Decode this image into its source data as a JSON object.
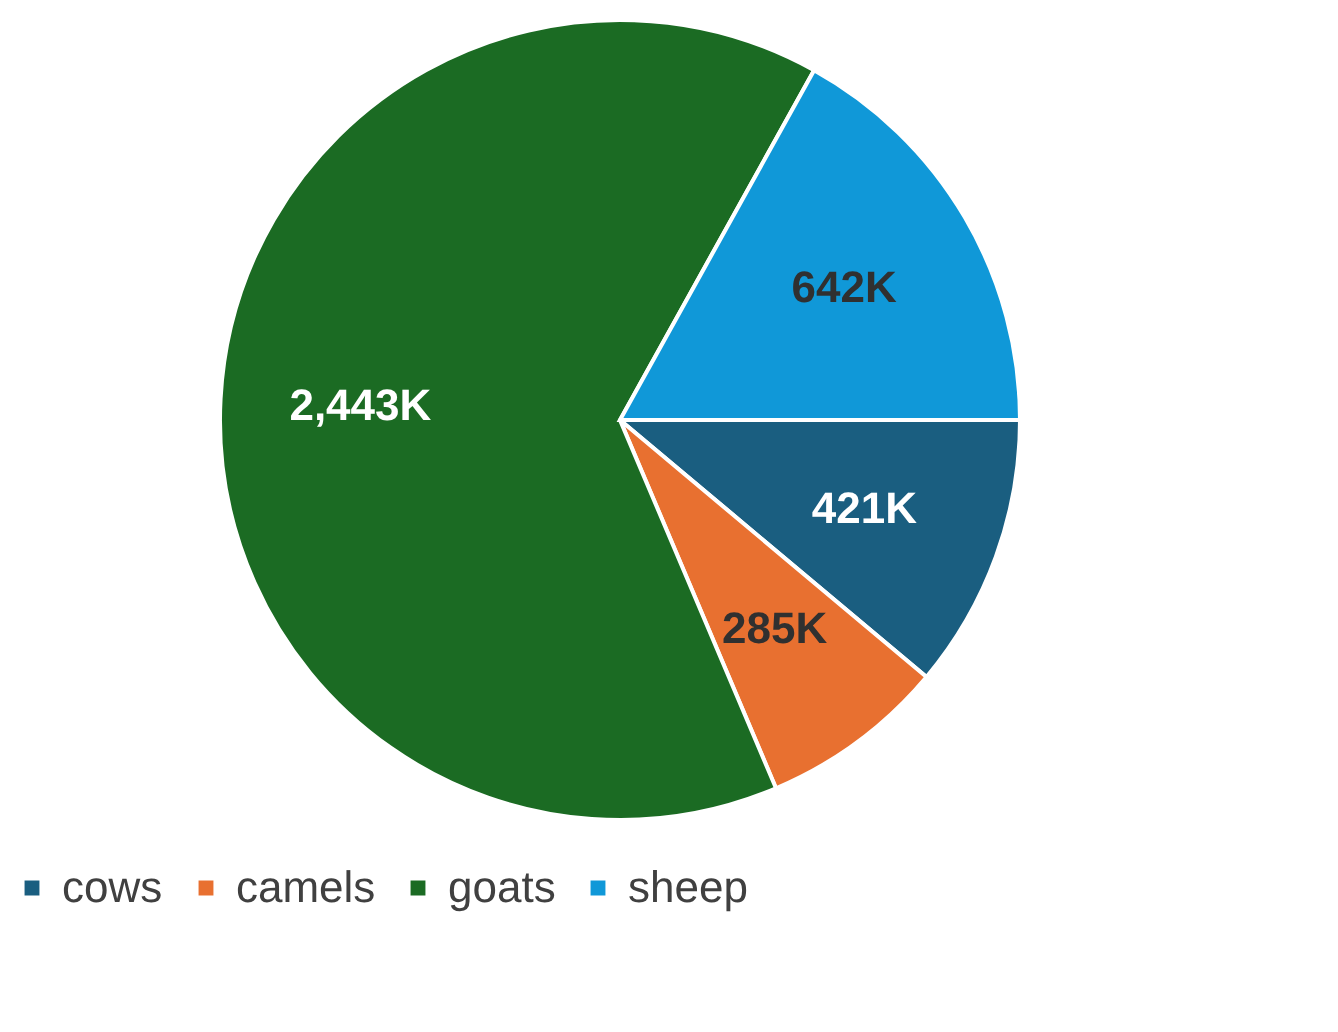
{
  "chart_data": {
    "type": "pie",
    "categories": [
      "cows",
      "camels",
      "goats",
      "sheep"
    ],
    "values": [
      421,
      285,
      2443,
      642
    ],
    "value_labels": [
      "421K",
      "285K",
      "2,443K",
      "642K"
    ],
    "colors": [
      "#1a5e80",
      "#e87030",
      "#1b6b23",
      "#1098d8"
    ],
    "legend": "bottom"
  }
}
